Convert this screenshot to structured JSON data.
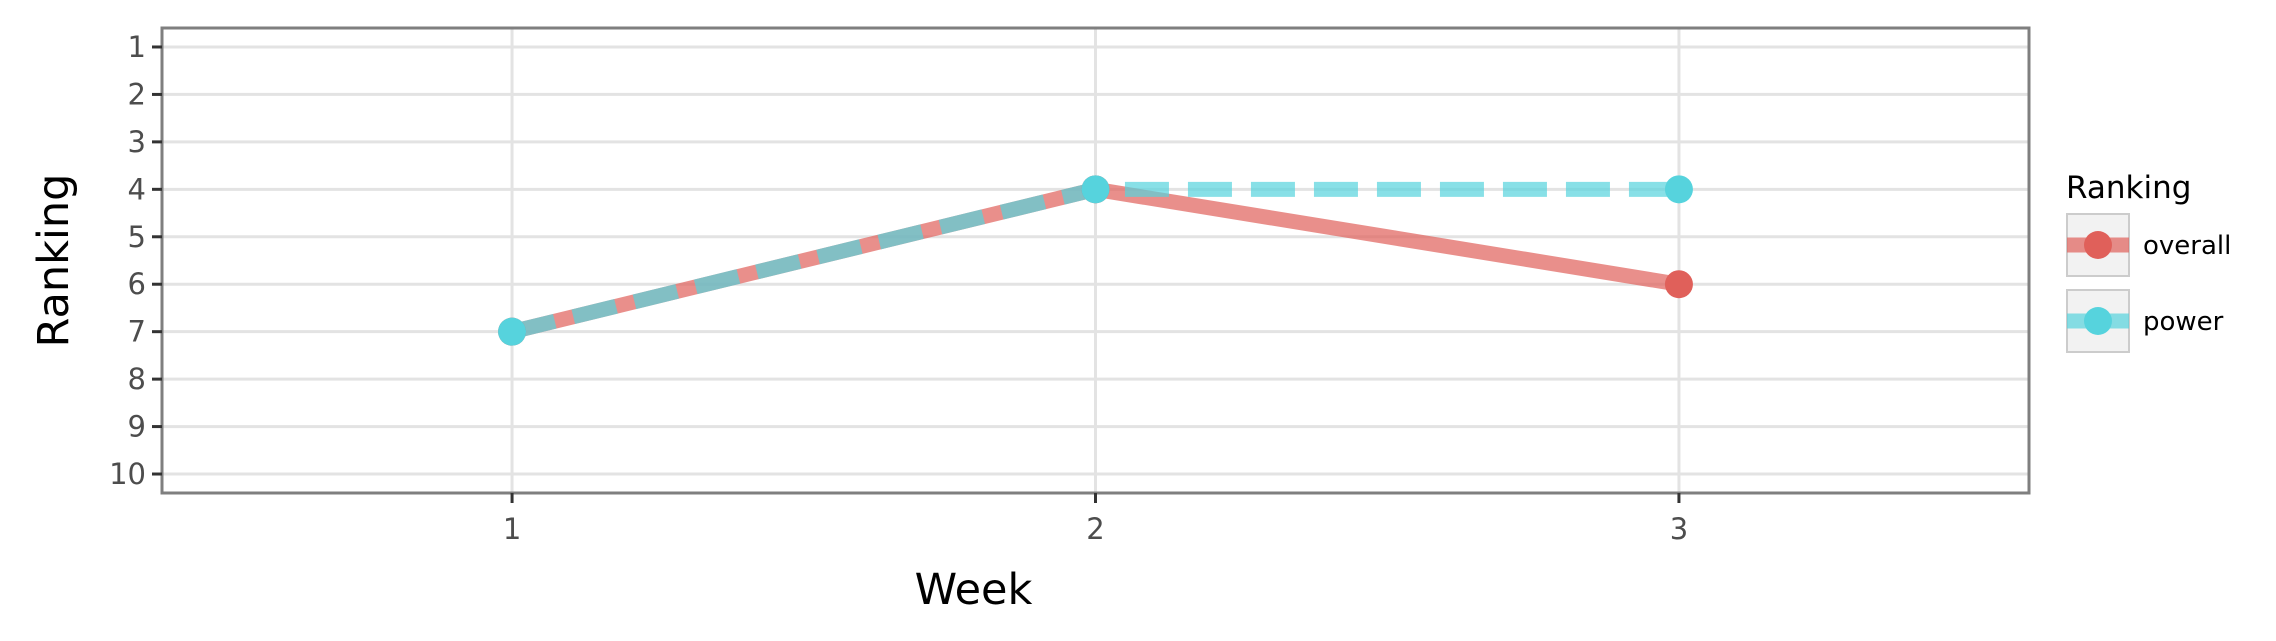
{
  "chart_data": {
    "type": "line",
    "xlabel": "Week",
    "ylabel": "Ranking",
    "x": [
      1,
      2,
      3
    ],
    "x_ticks": [
      "1",
      "2",
      "3"
    ],
    "xlim": [
      0.4,
      3.6
    ],
    "y_ticks": [
      "1",
      "2",
      "3",
      "4",
      "5",
      "6",
      "7",
      "8",
      "9",
      "10"
    ],
    "ylim": [
      10.4,
      0.6
    ],
    "y_reversed": true,
    "grid": true,
    "legend": {
      "title": "Ranking",
      "placement": "right"
    },
    "series": [
      {
        "name": "overall",
        "values": [
          7,
          4,
          6
        ],
        "color": "#e0605a",
        "line_style": "solid"
      },
      {
        "name": "power",
        "values": [
          7,
          4,
          4
        ],
        "color": "#56d3dd",
        "line_style": "dashed"
      }
    ]
  }
}
